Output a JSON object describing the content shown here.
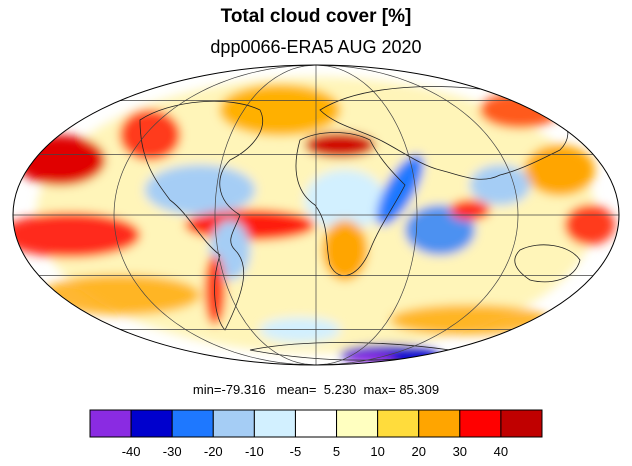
{
  "title": "Total cloud cover [%]",
  "subtitle": "dpp0066-ERA5 AUG 2020",
  "stats": {
    "min_label": "min=",
    "min": "-79.316",
    "mean_label": "mean=",
    "mean": "5.230",
    "max_label": "max=",
    "max": "85.309"
  },
  "colorbar": {
    "colors": [
      "#8a2be2",
      "#0000cd",
      "#1e78ff",
      "#a5cdf5",
      "#d2f0ff",
      "#ffffff",
      "#ffffc0",
      "#ffdc3c",
      "#ffa500",
      "#ff0000",
      "#c00000"
    ],
    "tick_labels": [
      "-40",
      "-30",
      "-20",
      "-10",
      "-5",
      "5",
      "10",
      "20",
      "30",
      "40"
    ]
  },
  "map": {
    "projection": "mollweide",
    "graticule_longitudes": [
      -120,
      -60,
      0,
      60,
      120
    ],
    "graticule_latitudes": [
      -60,
      -30,
      0,
      30,
      60
    ]
  }
}
